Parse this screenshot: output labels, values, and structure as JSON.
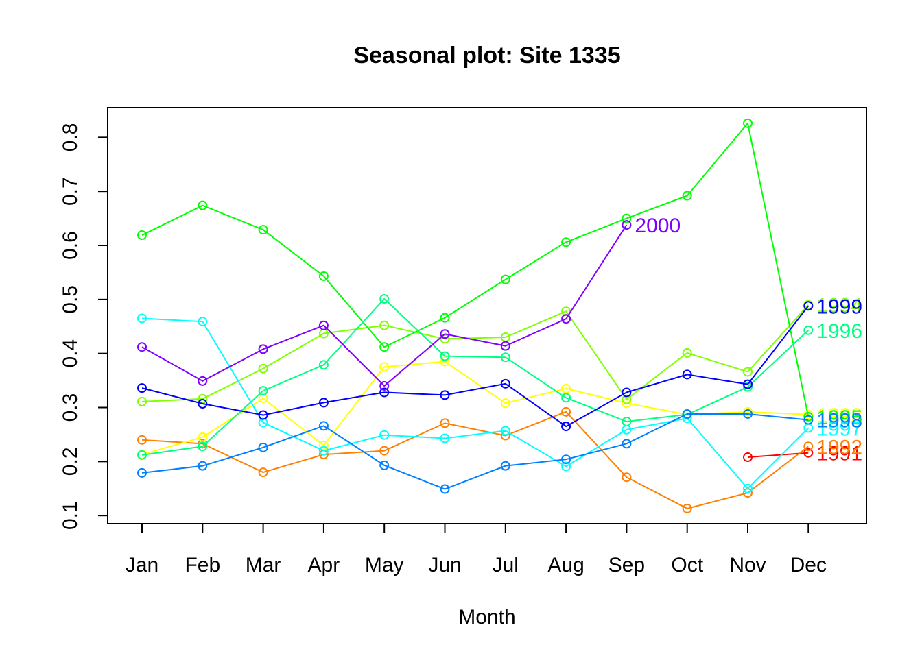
{
  "chart_data": {
    "type": "line",
    "title": "Seasonal plot: Site 1335",
    "xlabel": "Month",
    "ylabel": "",
    "categories": [
      "Jan",
      "Feb",
      "Mar",
      "Apr",
      "May",
      "Jun",
      "Jul",
      "Aug",
      "Sep",
      "Oct",
      "Nov",
      "Dec"
    ],
    "ylim": [
      0.085,
      0.855
    ],
    "yticks": [
      "0.1",
      "0.2",
      "0.3",
      "0.4",
      "0.5",
      "0.6",
      "0.7",
      "0.8"
    ],
    "grid": false,
    "legend": "none",
    "series": [
      {
        "name": "1991",
        "color": "#ff0000",
        "values": [
          null,
          null,
          null,
          null,
          null,
          null,
          null,
          null,
          null,
          null,
          0.208,
          0.216
        ]
      },
      {
        "name": "1992",
        "color": "#ff8000",
        "values": [
          0.24,
          0.233,
          0.18,
          0.213,
          0.22,
          0.271,
          0.248,
          0.292,
          0.171,
          0.113,
          0.142,
          0.228
        ]
      },
      {
        "name": "1993",
        "color": "#ffff00",
        "values": [
          0.213,
          0.245,
          0.317,
          0.23,
          0.375,
          0.385,
          0.308,
          0.335,
          0.308,
          0.287,
          0.292,
          0.287
        ]
      },
      {
        "name": "1994",
        "color": "#80ff00",
        "values": [
          0.311,
          0.316,
          0.372,
          0.437,
          0.452,
          0.427,
          0.43,
          0.478,
          0.315,
          0.401,
          0.366,
          0.49
        ]
      },
      {
        "name": "1995",
        "color": "#00ff00",
        "values": [
          0.619,
          0.674,
          0.629,
          0.543,
          0.412,
          0.466,
          0.537,
          0.606,
          0.65,
          0.692,
          0.826,
          0.283
        ]
      },
      {
        "name": "1996",
        "color": "#00ff80",
        "values": [
          0.212,
          0.228,
          0.331,
          0.379,
          0.501,
          0.395,
          0.393,
          0.318,
          0.274,
          0.287,
          0.338,
          0.443
        ]
      },
      {
        "name": "1997",
        "color": "#00ffff",
        "values": [
          0.465,
          0.459,
          0.272,
          0.22,
          0.249,
          0.243,
          0.257,
          0.191,
          0.259,
          0.28,
          0.15,
          0.262
        ]
      },
      {
        "name": "1998",
        "color": "#0080ff",
        "values": [
          0.179,
          0.192,
          0.226,
          0.266,
          0.193,
          0.149,
          0.192,
          0.204,
          0.233,
          0.288,
          0.288,
          0.277
        ]
      },
      {
        "name": "1999",
        "color": "#0000ff",
        "values": [
          0.336,
          0.307,
          0.286,
          0.309,
          0.328,
          0.323,
          0.344,
          0.265,
          0.328,
          0.361,
          0.343,
          0.488
        ]
      },
      {
        "name": "2000",
        "color": "#8000ff",
        "values": [
          0.412,
          0.349,
          0.408,
          0.452,
          0.34,
          0.436,
          0.414,
          0.464,
          0.638,
          null,
          null,
          null
        ]
      }
    ]
  }
}
